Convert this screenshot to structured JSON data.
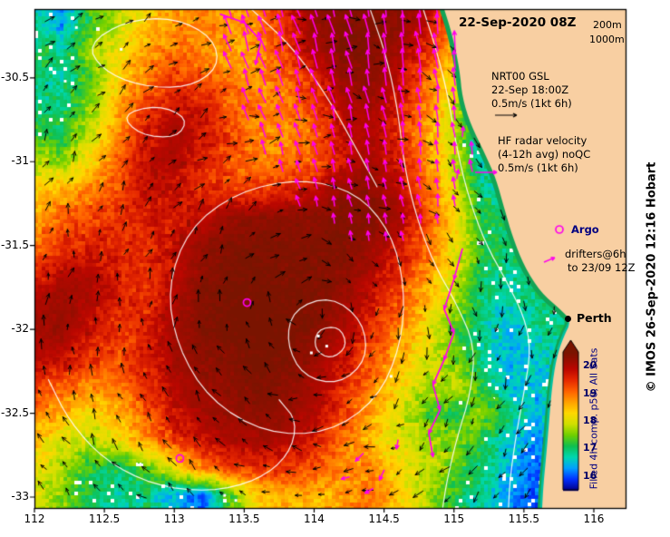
{
  "header": {
    "title": "22-Sep-2020 08Z"
  },
  "watermark": "© IMOS 26-Sep-2020 12:16 Hobart",
  "city": {
    "label": "Perth"
  },
  "legend": {
    "isobaths": {
      "labels": [
        "200m",
        "1000m"
      ],
      "line_color": "#ffffff"
    },
    "gsl": {
      "lines": [
        "NRT00 GSL",
        "22-Sep 18:00Z",
        "0.5m/s (1kt 6h)"
      ],
      "arrow_color": "#000000"
    },
    "hf_radar": {
      "lines": [
        "HF radar velocity",
        "(4-12h avg) noQC",
        "0.5m/s (1kt 6h)"
      ],
      "arrow_color": "#ff00ee"
    },
    "argo": {
      "label": "Argo",
      "marker_color": "#ff00ee"
    },
    "drifters": {
      "lines": [
        "drifters@6h",
        "to 23/09 12Z"
      ],
      "marker_color": "#ff00ee"
    }
  },
  "axes": {
    "x": {
      "ticks": [
        "112",
        "112.5",
        "113",
        "113.5",
        "114",
        "114.5",
        "115",
        "115.5",
        "116"
      ]
    },
    "y": {
      "ticks": [
        "-30.5",
        "-31",
        "-31.5",
        "-32",
        "-32.5",
        "-33"
      ]
    }
  },
  "colorbar": {
    "ticks": [
      "20",
      "19",
      "18",
      "17",
      "16"
    ],
    "label": "Filled 4h comp. p50, All Sats",
    "min": 15.5,
    "max": 20.5,
    "label_color": "#000099"
  },
  "colors": {
    "land": "#f8cfa2",
    "coast_strip": "#12a455",
    "coast_strip_south": "#00bfa0",
    "magenta": "#ff00ee",
    "contour": "#ffffff"
  },
  "chart_data": {
    "type": "heatmap",
    "title": "22-Sep-2020 08Z",
    "x_range": [
      112,
      116.23
    ],
    "y_range": [
      -33.07,
      -30.09
    ],
    "grid": {
      "lon_min": 112.0,
      "lon_max": 116.2,
      "lat_top": -30.17,
      "lat_bottom": -32.99,
      "cols": 22,
      "rows": 18,
      "sst": [
        [
          16.8,
          16.3,
          17.3,
          17.8,
          18.4,
          18.8,
          18.9,
          18.7,
          18.9,
          19.6,
          20.2,
          20.4,
          20.4,
          20.3,
          19.9,
          18.8,
          17.4,
          17.0,
          17.0,
          17.0,
          17.0,
          17.0
        ],
        [
          17.1,
          16.9,
          17.7,
          18.2,
          18.7,
          19.0,
          18.8,
          18.6,
          18.8,
          19.4,
          20.0,
          20.4,
          20.4,
          20.1,
          19.5,
          18.4,
          17.2,
          16.9,
          17.0,
          17.0,
          17.0,
          17.0
        ],
        [
          17.0,
          16.8,
          17.4,
          18.3,
          19.0,
          19.4,
          19.2,
          18.9,
          18.8,
          19.0,
          19.6,
          20.2,
          20.3,
          19.9,
          19.1,
          18.1,
          16.9,
          16.8,
          17.0,
          17.0,
          17.0,
          17.0
        ],
        [
          16.9,
          17.0,
          17.6,
          18.6,
          19.4,
          19.8,
          19.6,
          19.1,
          18.9,
          18.9,
          19.3,
          20.0,
          20.1,
          19.7,
          18.9,
          17.9,
          16.7,
          16.8,
          17.0,
          17.0,
          17.0,
          17.0
        ],
        [
          17.3,
          17.2,
          17.9,
          18.9,
          19.7,
          20.1,
          19.8,
          19.3,
          18.9,
          18.8,
          19.1,
          19.8,
          20.0,
          19.5,
          18.7,
          17.7,
          16.6,
          16.8,
          17.0,
          17.0,
          17.0,
          17.0
        ],
        [
          17.8,
          17.6,
          18.3,
          19.1,
          19.9,
          20.0,
          19.6,
          19.2,
          18.9,
          18.9,
          19.2,
          19.8,
          20.1,
          19.6,
          18.9,
          17.9,
          16.7,
          16.8,
          17.0,
          17.0,
          17.0,
          17.0
        ],
        [
          18.3,
          18.6,
          18.9,
          19.3,
          19.8,
          19.8,
          19.5,
          19.4,
          19.4,
          19.6,
          19.9,
          20.2,
          20.3,
          19.9,
          19.1,
          18.1,
          16.9,
          16.8,
          17.0,
          17.0,
          17.0,
          17.0
        ],
        [
          18.7,
          19.1,
          19.3,
          19.5,
          19.7,
          19.7,
          19.9,
          20.2,
          20.3,
          20.3,
          20.3,
          20.4,
          20.4,
          20.1,
          19.3,
          18.3,
          17.1,
          16.9,
          17.0,
          17.0,
          17.0,
          17.0
        ],
        [
          19.1,
          19.5,
          19.6,
          19.6,
          19.5,
          19.8,
          20.2,
          20.4,
          20.4,
          20.4,
          20.4,
          20.4,
          20.2,
          19.8,
          19.1,
          18.2,
          17.2,
          16.9,
          17.0,
          17.0,
          17.0,
          17.0
        ],
        [
          19.6,
          19.9,
          20.0,
          19.7,
          19.5,
          19.9,
          20.3,
          20.5,
          20.5,
          20.4,
          20.4,
          20.3,
          20.0,
          19.5,
          18.8,
          18.0,
          17.1,
          16.8,
          17.0,
          17.0,
          17.0,
          17.0
        ],
        [
          20.0,
          20.2,
          20.0,
          19.6,
          19.5,
          20.0,
          20.4,
          20.5,
          20.5,
          20.5,
          20.4,
          20.2,
          19.8,
          19.2,
          18.5,
          17.7,
          16.9,
          16.7,
          16.9,
          17.0,
          17.0,
          17.0
        ],
        [
          20.1,
          20.2,
          19.8,
          19.4,
          19.6,
          20.1,
          20.4,
          20.5,
          20.6,
          20.5,
          20.4,
          20.0,
          19.5,
          18.9,
          18.2,
          17.4,
          16.8,
          16.5,
          16.8,
          17.0,
          17.0,
          17.0
        ],
        [
          19.9,
          19.9,
          19.5,
          19.3,
          19.6,
          20.1,
          20.3,
          20.4,
          20.5,
          20.4,
          20.2,
          19.8,
          19.2,
          18.6,
          18.0,
          17.5,
          16.9,
          16.4,
          16.6,
          17.0,
          17.0,
          17.0
        ],
        [
          19.4,
          19.2,
          18.9,
          19.0,
          19.5,
          20.0,
          20.2,
          20.3,
          20.4,
          20.3,
          20.1,
          19.6,
          19.0,
          18.3,
          17.8,
          17.9,
          17.2,
          16.5,
          16.5,
          17.0,
          17.0,
          17.0
        ],
        [
          18.9,
          18.6,
          18.3,
          18.6,
          19.2,
          19.8,
          20.1,
          20.2,
          20.3,
          20.2,
          20.0,
          19.4,
          18.7,
          18.1,
          17.4,
          17.1,
          17.6,
          16.9,
          16.4,
          17.0,
          17.0,
          17.0
        ],
        [
          18.4,
          18.0,
          17.8,
          18.1,
          18.8,
          19.4,
          19.8,
          20.0,
          20.1,
          20.0,
          19.7,
          19.0,
          18.4,
          18.0,
          17.8,
          17.6,
          17.2,
          16.6,
          16.2,
          17.0,
          17.0,
          17.0
        ],
        [
          18.2,
          17.8,
          17.2,
          17.0,
          17.4,
          18.2,
          18.9,
          19.3,
          19.5,
          19.4,
          19.2,
          18.8,
          18.9,
          18.3,
          17.9,
          17.4,
          16.9,
          16.4,
          16.1,
          17.0,
          17.0,
          17.0
        ],
        [
          18.0,
          17.6,
          17.0,
          16.8,
          16.9,
          16.4,
          16.0,
          17.4,
          18.3,
          18.6,
          18.5,
          18.7,
          19.0,
          18.4,
          17.8,
          17.2,
          16.7,
          16.3,
          16.0,
          17.0,
          17.0,
          17.0
        ]
      ]
    },
    "colormap": {
      "stops": [
        {
          "v": 15.5,
          "c": "#000088"
        },
        {
          "v": 15.9,
          "c": "#0030ff"
        },
        {
          "v": 16.3,
          "c": "#00a0ff"
        },
        {
          "v": 16.7,
          "c": "#00d8b0"
        },
        {
          "v": 17.1,
          "c": "#10c050"
        },
        {
          "v": 17.5,
          "c": "#70d000"
        },
        {
          "v": 17.9,
          "c": "#d0e000"
        },
        {
          "v": 18.3,
          "c": "#ffd800"
        },
        {
          "v": 18.7,
          "c": "#ffa000"
        },
        {
          "v": 19.1,
          "c": "#ff6000"
        },
        {
          "v": 19.5,
          "c": "#e62800"
        },
        {
          "v": 19.9,
          "c": "#bb0700"
        },
        {
          "v": 20.3,
          "c": "#8d0f00"
        },
        {
          "v": 20.5,
          "c": "#7a1400"
        }
      ]
    },
    "coastline": [
      [
        114.93,
        -30.09
      ],
      [
        114.99,
        -30.25
      ],
      [
        115.04,
        -30.45
      ],
      [
        115.06,
        -30.62
      ],
      [
        115.12,
        -30.78
      ],
      [
        115.22,
        -30.95
      ],
      [
        115.3,
        -31.1
      ],
      [
        115.36,
        -31.28
      ],
      [
        115.42,
        -31.45
      ],
      [
        115.5,
        -31.62
      ],
      [
        115.62,
        -31.78
      ],
      [
        115.76,
        -31.88
      ],
      [
        115.84,
        -31.95
      ],
      [
        115.78,
        -32.05
      ],
      [
        115.73,
        -32.18
      ],
      [
        115.7,
        -32.35
      ],
      [
        115.68,
        -32.55
      ],
      [
        115.66,
        -32.75
      ],
      [
        115.64,
        -32.92
      ],
      [
        115.63,
        -33.07
      ]
    ],
    "contours": [
      {
        "closed": false,
        "pts": [
          [
            114.78,
            -30.09
          ],
          [
            114.88,
            -30.35
          ],
          [
            114.96,
            -30.62
          ],
          [
            115.02,
            -30.92
          ],
          [
            115.1,
            -31.2
          ],
          [
            115.22,
            -31.48
          ],
          [
            115.38,
            -31.72
          ],
          [
            115.5,
            -31.92
          ],
          [
            115.55,
            -32.12
          ],
          [
            115.5,
            -32.38
          ],
          [
            115.44,
            -32.65
          ],
          [
            115.4,
            -32.9
          ],
          [
            115.39,
            -33.06
          ]
        ]
      },
      {
        "closed": false,
        "pts": [
          [
            114.4,
            -30.09
          ],
          [
            114.52,
            -30.38
          ],
          [
            114.6,
            -30.7
          ],
          [
            114.64,
            -31.0
          ],
          [
            114.72,
            -31.3
          ],
          [
            114.85,
            -31.6
          ],
          [
            115.02,
            -31.85
          ],
          [
            115.15,
            -32.1
          ],
          [
            115.12,
            -32.38
          ],
          [
            115.02,
            -32.65
          ],
          [
            114.95,
            -32.9
          ],
          [
            114.92,
            -33.06
          ]
        ]
      },
      {
        "closed": true,
        "pts": [
          [
            112.95,
            -31.75
          ],
          [
            113.1,
            -31.4
          ],
          [
            113.45,
            -31.18
          ],
          [
            113.9,
            -31.1
          ],
          [
            114.3,
            -31.18
          ],
          [
            114.55,
            -31.42
          ],
          [
            114.65,
            -31.75
          ],
          [
            114.62,
            -32.1
          ],
          [
            114.45,
            -32.42
          ],
          [
            114.1,
            -32.62
          ],
          [
            113.65,
            -32.62
          ],
          [
            113.25,
            -32.42
          ],
          [
            113.02,
            -32.1
          ]
        ]
      },
      {
        "closed": true,
        "pts": [
          [
            113.85,
            -31.88
          ],
          [
            114.12,
            -31.8
          ],
          [
            114.35,
            -31.95
          ],
          [
            114.38,
            -32.18
          ],
          [
            114.18,
            -32.33
          ],
          [
            113.92,
            -32.28
          ],
          [
            113.8,
            -32.08
          ]
        ]
      },
      {
        "closed": true,
        "pts": [
          [
            114.02,
            -32.0
          ],
          [
            114.18,
            -31.98
          ],
          [
            114.24,
            -32.1
          ],
          [
            114.12,
            -32.18
          ],
          [
            114.0,
            -32.12
          ]
        ]
      },
      {
        "closed": false,
        "pts": [
          [
            112.1,
            -32.3
          ],
          [
            112.25,
            -32.55
          ],
          [
            112.5,
            -32.78
          ],
          [
            112.85,
            -32.93
          ],
          [
            113.25,
            -32.97
          ],
          [
            113.6,
            -32.9
          ],
          [
            113.82,
            -32.75
          ],
          [
            113.88,
            -32.55
          ],
          [
            113.75,
            -32.42
          ]
        ]
      },
      {
        "closed": true,
        "pts": [
          [
            112.38,
            -30.3
          ],
          [
            112.65,
            -30.16
          ],
          [
            113.0,
            -30.14
          ],
          [
            113.28,
            -30.26
          ],
          [
            113.32,
            -30.44
          ],
          [
            113.1,
            -30.56
          ],
          [
            112.75,
            -30.55
          ],
          [
            112.48,
            -30.45
          ]
        ]
      },
      {
        "closed": true,
        "pts": [
          [
            112.62,
            -30.72
          ],
          [
            112.88,
            -30.66
          ],
          [
            113.1,
            -30.74
          ],
          [
            113.02,
            -30.86
          ],
          [
            112.75,
            -30.84
          ]
        ]
      },
      {
        "closed": false,
        "pts": [
          [
            113.55,
            -30.09
          ],
          [
            113.85,
            -30.32
          ],
          [
            114.1,
            -30.62
          ],
          [
            114.3,
            -30.92
          ],
          [
            114.45,
            -31.15
          ]
        ]
      }
    ],
    "hf_region": [
      [
        113.3,
        -30.1
      ],
      [
        114.98,
        -30.1
      ],
      [
        115.1,
        -30.7
      ],
      [
        115.18,
        -31.1
      ],
      [
        114.9,
        -31.42
      ],
      [
        114.4,
        -31.55
      ],
      [
        113.85,
        -31.25
      ],
      [
        113.45,
        -30.7
      ]
    ],
    "drifter_tracks": [
      [
        [
          115.06,
          -31.52
        ],
        [
          115.0,
          -31.7
        ],
        [
          114.93,
          -31.88
        ],
        [
          115.0,
          -32.02
        ],
        [
          114.93,
          -32.18
        ],
        [
          114.85,
          -32.33
        ],
        [
          114.9,
          -32.48
        ],
        [
          114.82,
          -32.62
        ],
        [
          114.85,
          -32.76
        ]
      ],
      [
        [
          113.33,
          -30.12
        ],
        [
          113.5,
          -30.17
        ],
        [
          113.62,
          -30.28
        ],
        [
          113.58,
          -30.42
        ]
      ]
    ],
    "argo_floats": [
      [
        113.52,
        -31.84
      ],
      [
        113.04,
        -32.77
      ]
    ],
    "extra_magenta_arrows": [
      {
        "lon": 114.35,
        "lat": -32.74,
        "ang": 135,
        "len": 12
      },
      {
        "lon": 114.5,
        "lat": -32.84,
        "ang": 115,
        "len": 12
      },
      {
        "lon": 114.42,
        "lat": -32.95,
        "ang": 150,
        "len": 10
      },
      {
        "lon": 114.6,
        "lat": -32.66,
        "ang": 100,
        "len": 10
      },
      {
        "lon": 114.25,
        "lat": -32.88,
        "ang": 165,
        "len": 9
      },
      {
        "lon": 115.02,
        "lat": -31.1,
        "ang": -80,
        "len": 10
      },
      {
        "lon": 115.06,
        "lat": -30.85,
        "ang": -85,
        "len": 11
      }
    ],
    "white_gaps": [
      [
        114.03,
        -32.04
      ],
      [
        114.09,
        -32.1
      ],
      [
        113.98,
        -32.14
      ],
      [
        114.55,
        -32.28
      ],
      [
        112.22,
        -30.52
      ],
      [
        112.3,
        -30.2
      ],
      [
        113.36,
        -32.99
      ],
      [
        113.44,
        -33.02
      ],
      [
        112.62,
        -30.33
      ]
    ],
    "currents": {
      "center": [
        114.0,
        -31.9
      ],
      "sense": "cw"
    }
  }
}
